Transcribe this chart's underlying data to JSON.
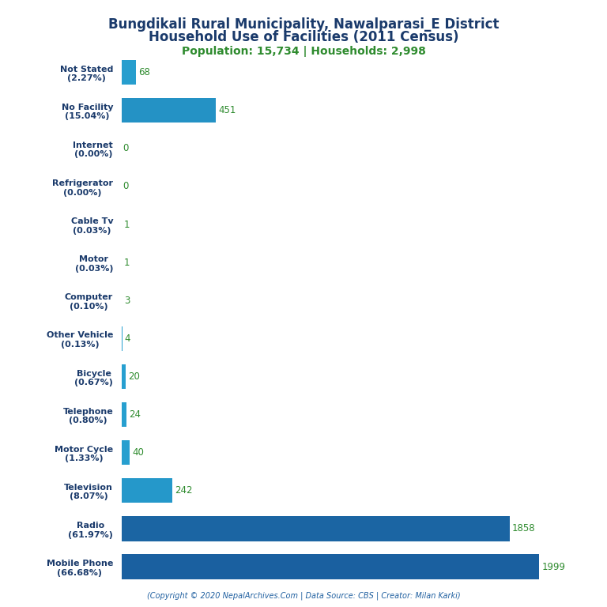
{
  "title_line1": "Bungdikali Rural Municipality, Nawalparasi_E District",
  "title_line2": "Household Use of Facilities (2011 Census)",
  "subtitle": "Population: 15,734 | Households: 2,998",
  "footer": "(Copyright © 2020 NepalArchives.Com | Data Source: CBS | Creator: Milan Karki)",
  "categories": [
    "Mobile Phone\n(66.68%)",
    "Radio\n(61.97%)",
    "Television\n(8.07%)",
    "Motor Cycle\n(1.33%)",
    "Telephone\n(0.80%)",
    "Bicycle\n(0.67%)",
    "Other Vehicle\n(0.13%)",
    "Computer\n(0.10%)",
    "Motor\n(0.03%)",
    "Cable Tv\n(0.03%)",
    "Refrigerator\n(0.00%)",
    "Internet\n(0.00%)",
    "No Facility\n(15.04%)",
    "Not Stated\n(2.27%)"
  ],
  "values": [
    1999,
    1858,
    242,
    40,
    24,
    20,
    4,
    3,
    1,
    1,
    0,
    0,
    451,
    68
  ],
  "bar_color_large": "#1e6fad",
  "bar_color_small": "#2196c4",
  "title_color": "#1a3a6b",
  "subtitle_color": "#2e8b2e",
  "value_color": "#2e8b2e",
  "footer_color": "#2060a0",
  "label_color": "#1a3a6b",
  "background_color": "#ffffff",
  "xlim": [
    0,
    2150
  ],
  "title_fontsize": 12,
  "subtitle_fontsize": 10,
  "label_fontsize": 8,
  "value_fontsize": 8.5,
  "footer_fontsize": 7
}
